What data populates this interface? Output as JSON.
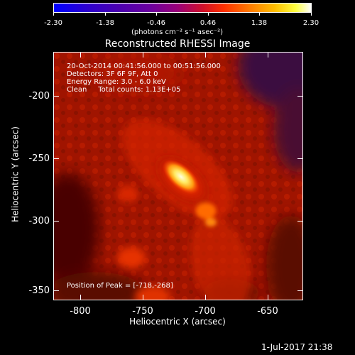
{
  "colorbar": {
    "tick_labels": [
      "-2.30",
      "-1.38",
      "-0.46",
      "0.46",
      "1.38",
      "2.30"
    ],
    "unit_label": "(photons cm⁻² s⁻¹ asec⁻²)"
  },
  "title": "Reconstructed RHESSI Image",
  "annotation": {
    "line1": "20-Oct-2014 00:41:56.000 to 00:51:56.000",
    "line2": "Detectors: 3F 6F 9F, Att 0",
    "line3": "Energy Range: 3.0 - 6.0 keV",
    "line4": "Clean     Total counts: 1.13E+05",
    "peak": "Position of Peak = [-718,-268]"
  },
  "axes": {
    "x_label": "Heliocentric X (arcsec)",
    "y_label": "Heliocentric Y (arcsec)",
    "x_ticks": [
      "-800",
      "-750",
      "-700",
      "-650"
    ],
    "y_ticks": [
      "-200",
      "-250",
      "-300",
      "-350"
    ]
  },
  "timestamp": "1-Jul-2017 21:38",
  "colors": {
    "background": "#000000",
    "map_base": "#a31500",
    "peak": "#ffff88",
    "colormap": [
      "#0000ff",
      "#3b00b8",
      "#6d00a5",
      "#b40050",
      "#ff1f00",
      "#ff9a00",
      "#ffff00",
      "#ffffff"
    ]
  }
}
